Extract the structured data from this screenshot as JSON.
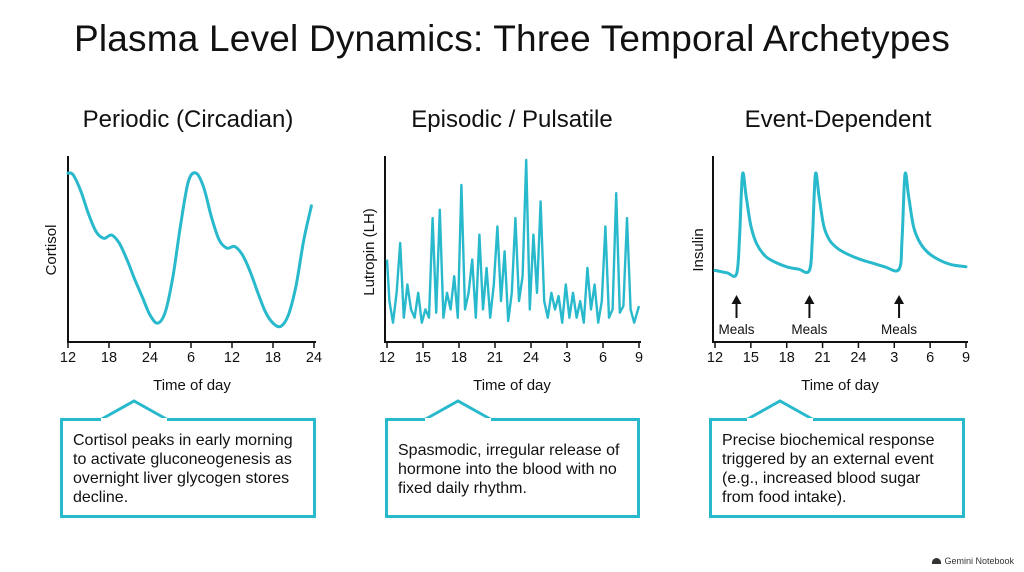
{
  "title": "Plasma Level Dynamics: Three Temporal Archetypes",
  "watermark": "Gemini Notebook",
  "colors": {
    "series": "#29b9cc",
    "axis": "#111111"
  },
  "chart_data": [
    {
      "type": "line",
      "title": "Periodic (Circadian)",
      "xlabel": "Time of day",
      "ylabel": "Cortisol",
      "x_ticks": [
        "12",
        "18",
        "24",
        "6",
        "12",
        "18",
        "24"
      ],
      "x_range_hours": [
        0,
        48
      ],
      "y_range": [
        0,
        100
      ],
      "series": [
        {
          "x": [
            0,
            1,
            2.5,
            4,
            5.5,
            7,
            8.5,
            10,
            11.5,
            13,
            14.5,
            16,
            17.5,
            19,
            20.5,
            22,
            23.5,
            25,
            26.5,
            28,
            29.5,
            31,
            32.5,
            34,
            35.5,
            37,
            38.5,
            40,
            41.5,
            43,
            44.5,
            46,
            47.5
          ],
          "y": [
            95,
            94,
            84,
            70,
            59,
            55,
            57,
            52,
            42,
            30,
            19,
            8,
            3,
            10,
            32,
            64,
            90,
            95,
            86,
            68,
            54,
            49,
            50,
            45,
            35,
            22,
            10,
            3,
            1,
            8,
            26,
            54,
            75
          ]
        }
      ],
      "caption": "Cortisol peaks in early morning to activate gluconeogenesis as overnight liver glycogen stores decline."
    },
    {
      "type": "line",
      "title": "Episodic / Pulsatile",
      "xlabel": "Time of day",
      "ylabel": "Lutropin (LH)",
      "x_ticks": [
        "12",
        "15",
        "18",
        "21",
        "24",
        "3",
        "6",
        "9"
      ],
      "x_range_hours": [
        0,
        21
      ],
      "y_range": [
        0,
        100
      ],
      "series": [
        {
          "x": [
            0,
            0.2,
            0.5,
            0.8,
            1.1,
            1.4,
            1.7,
            2.0,
            2.3,
            2.6,
            2.9,
            3.2,
            3.5,
            3.8,
            4.1,
            4.4,
            4.7,
            5.0,
            5.3,
            5.6,
            5.9,
            6.2,
            6.5,
            6.8,
            7.1,
            7.4,
            7.7,
            8.0,
            8.3,
            8.6,
            8.9,
            9.2,
            9.5,
            9.8,
            10.1,
            10.4,
            10.7,
            11.0,
            11.3,
            11.6,
            11.9,
            12.2,
            12.5,
            12.8,
            13.1,
            13.4,
            13.7,
            14.0,
            14.3,
            14.6,
            14.9,
            15.2,
            15.5,
            15.8,
            16.1,
            16.4,
            16.7,
            17.0,
            17.3,
            17.6,
            17.9,
            18.2,
            18.5,
            18.8,
            19.1,
            19.4,
            19.7,
            20.0,
            20.3,
            20.6,
            21.0
          ],
          "y": [
            40,
            15,
            2,
            20,
            50,
            5,
            25,
            10,
            5,
            20,
            2,
            10,
            5,
            65,
            8,
            70,
            5,
            20,
            10,
            30,
            5,
            85,
            10,
            20,
            40,
            5,
            55,
            10,
            35,
            5,
            25,
            60,
            15,
            45,
            3,
            20,
            65,
            15,
            30,
            100,
            10,
            55,
            20,
            75,
            15,
            5,
            20,
            10,
            18,
            2,
            25,
            5,
            20,
            5,
            15,
            2,
            35,
            10,
            25,
            2,
            15,
            60,
            5,
            10,
            80,
            8,
            12,
            65,
            10,
            2,
            12
          ]
        }
      ],
      "caption": "Spasmodic, irregular release of hormone into the blood with no fixed daily rhythm."
    },
    {
      "type": "line",
      "title": "Event-Dependent",
      "xlabel": "Time of day",
      "ylabel": "Insulin",
      "x_ticks": [
        "12",
        "15",
        "18",
        "21",
        "24",
        "3",
        "6",
        "9"
      ],
      "x_range_hours": [
        0,
        21
      ],
      "y_range": [
        0,
        100
      ],
      "series": [
        {
          "x": [
            0,
            1,
            1.8,
            2.05,
            2.3,
            2.6,
            3.0,
            3.5,
            4.2,
            5.0,
            6.0,
            7.0,
            7.9,
            8.15,
            8.4,
            8.7,
            9.1,
            9.6,
            10.3,
            11.2,
            12.2,
            13.2,
            14.2,
            15.4,
            15.65,
            15.9,
            16.2,
            16.6,
            17.1,
            17.8,
            18.7,
            19.7,
            21.0
          ],
          "y": [
            18,
            16,
            15,
            45,
            98,
            80,
            55,
            40,
            30,
            25,
            21,
            19,
            18,
            45,
            98,
            80,
            55,
            43,
            36,
            31,
            27,
            24,
            21,
            19,
            45,
            98,
            80,
            55,
            42,
            33,
            27,
            23,
            21
          ]
        }
      ],
      "annotations": [
        {
          "text": "Meals",
          "x": 1.8
        },
        {
          "text": "Meals",
          "x": 7.9
        },
        {
          "text": "Meals",
          "x": 15.4
        }
      ],
      "caption": "Precise biochemical response triggered by an external event (e.g., increased blood sugar from food intake)."
    }
  ]
}
